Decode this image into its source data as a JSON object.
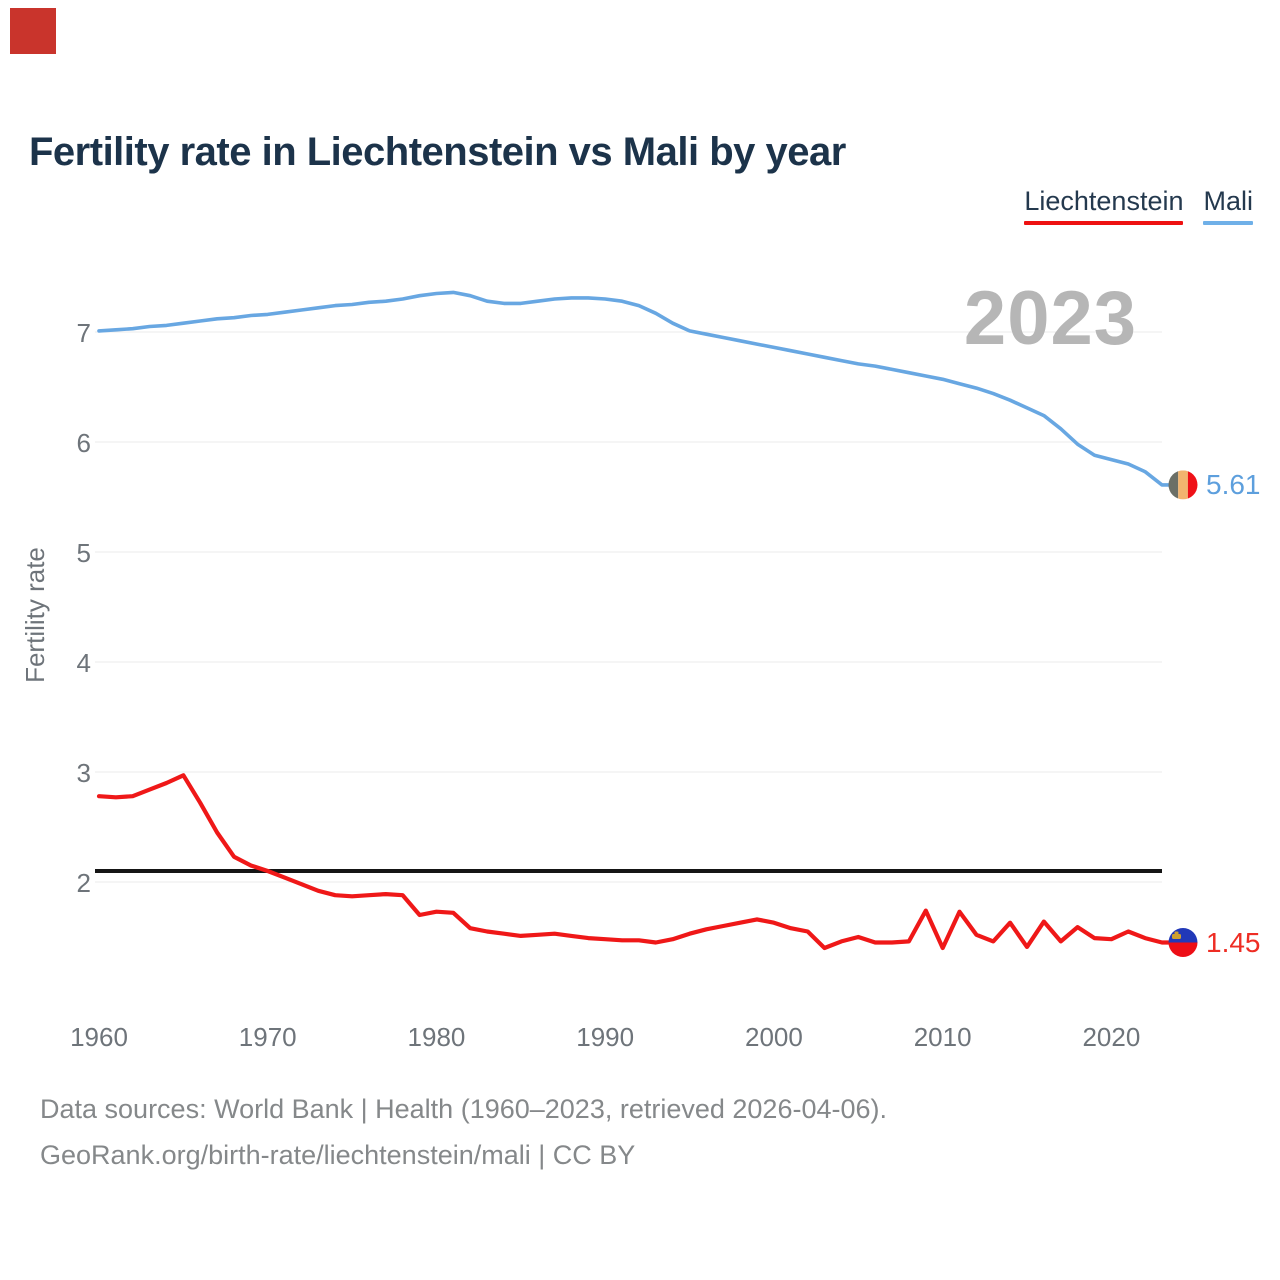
{
  "corner_marker": {
    "color": "#c9342c"
  },
  "header": {
    "title": "Fertility rate in Liechtenstein vs Mali by year"
  },
  "legend": [
    {
      "label": "Liechtenstein",
      "color": "#ee1111"
    },
    {
      "label": "Mali",
      "color": "#6fb0e8"
    }
  ],
  "watermark": "2023",
  "footer": {
    "line1": "Data sources: World Bank | Health (1960–2023, retrieved 2026-04-06).",
    "line2": "GeoRank.org/birth-rate/liechtenstein/mali | CC BY"
  },
  "chart_data": {
    "type": "line",
    "title": "Fertility rate in Liechtenstein vs Mali by year",
    "xlabel": "",
    "ylabel": "Fertility rate",
    "xlim": [
      1960,
      2023
    ],
    "ylim": [
      1.4,
      7.6
    ],
    "x_ticks": [
      1960,
      1970,
      1980,
      1990,
      2000,
      2010,
      2020
    ],
    "y_ticks": [
      2,
      3,
      4,
      5,
      6,
      7
    ],
    "grid": true,
    "grid_color": "#ebebeb",
    "legend_position": "top-right",
    "start_year": 1960,
    "reference_line": {
      "value": 2.1,
      "color": "#151515"
    },
    "series": [
      {
        "name": "Mali",
        "color": "#68a7e2",
        "width": 3.6,
        "end_label": "5.61",
        "end_label_color": "#5d9fdd",
        "values": [
          7.01,
          7.02,
          7.03,
          7.05,
          7.06,
          7.08,
          7.1,
          7.12,
          7.13,
          7.15,
          7.16,
          7.18,
          7.2,
          7.22,
          7.24,
          7.25,
          7.27,
          7.28,
          7.3,
          7.33,
          7.35,
          7.36,
          7.33,
          7.28,
          7.26,
          7.26,
          7.28,
          7.3,
          7.31,
          7.31,
          7.3,
          7.28,
          7.24,
          7.17,
          7.08,
          7.01,
          6.98,
          6.95,
          6.92,
          6.89,
          6.86,
          6.83,
          6.8,
          6.77,
          6.74,
          6.71,
          6.69,
          6.66,
          6.63,
          6.6,
          6.57,
          6.53,
          6.49,
          6.44,
          6.38,
          6.31,
          6.24,
          6.12,
          5.98,
          5.88,
          5.84,
          5.8,
          5.73,
          5.61
        ]
      },
      {
        "name": "Liechtenstein",
        "color": "#ef1818",
        "width": 4.2,
        "end_label": "1.45",
        "end_label_color": "#ee2d24",
        "values": [
          2.78,
          2.77,
          2.78,
          2.84,
          2.9,
          2.97,
          2.72,
          2.45,
          2.23,
          2.15,
          2.1,
          2.04,
          1.98,
          1.92,
          1.88,
          1.87,
          1.88,
          1.89,
          1.88,
          1.7,
          1.73,
          1.72,
          1.58,
          1.55,
          1.53,
          1.51,
          1.52,
          1.53,
          1.51,
          1.49,
          1.48,
          1.47,
          1.47,
          1.45,
          1.48,
          1.53,
          1.57,
          1.6,
          1.63,
          1.66,
          1.63,
          1.58,
          1.55,
          1.4,
          1.46,
          1.5,
          1.45,
          1.45,
          1.46,
          1.74,
          1.4,
          1.73,
          1.52,
          1.46,
          1.63,
          1.41,
          1.64,
          1.46,
          1.59,
          1.49,
          1.48,
          1.55,
          1.49,
          1.45
        ]
      }
    ]
  }
}
